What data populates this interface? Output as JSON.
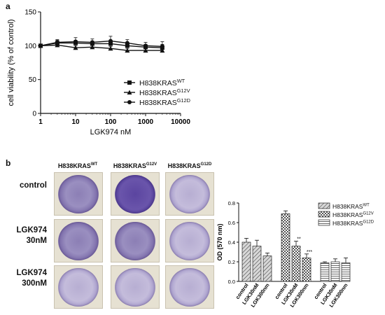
{
  "panel_a": {
    "label": "a"
  },
  "panel_b": {
    "label": "b",
    "columns": [
      {
        "base": "H838KRAS",
        "sup": "WT"
      },
      {
        "base": "H838KRAS",
        "sup": "G12V"
      },
      {
        "base": "H838KRAS",
        "sup": "G12D"
      }
    ],
    "rows": [
      {
        "line1": "control",
        "line2": ""
      },
      {
        "line1": "LGK974",
        "line2": "30nM"
      },
      {
        "line1": "LGK974",
        "line2": "300nM"
      }
    ]
  },
  "chart_data": [
    {
      "type": "line",
      "xlabel": "LGK974 nM",
      "ylabel": "cell viability (% of control)",
      "x_scale": "log",
      "xlim": [
        1,
        10000
      ],
      "ylim": [
        0,
        150
      ],
      "xticks": [
        "1",
        "10",
        "100",
        "1000",
        "10000"
      ],
      "yticks": [
        "0",
        "50",
        "100",
        "150"
      ],
      "x": [
        1,
        3,
        10,
        30,
        100,
        300,
        1000,
        3000
      ],
      "series": [
        {
          "name": "H838KRAS",
          "sup": "WT",
          "marker": "square",
          "values": [
            100,
            104,
            104,
            103,
            103,
            100,
            98,
            97
          ],
          "errors": [
            2,
            4,
            4,
            4,
            5,
            4,
            4,
            5
          ]
        },
        {
          "name": "H838KRAS",
          "sup": "G12V",
          "marker": "triangle",
          "values": [
            100,
            101,
            97,
            98,
            96,
            93,
            93,
            93
          ],
          "errors": [
            2,
            3,
            3,
            3,
            3,
            3,
            3,
            3
          ]
        },
        {
          "name": "H838KRAS",
          "sup": "G12D",
          "marker": "circle",
          "values": [
            100,
            105,
            106,
            105,
            107,
            104,
            100,
            99
          ],
          "errors": [
            2,
            4,
            6,
            5,
            7,
            5,
            5,
            7
          ]
        }
      ],
      "legend_position": "right"
    },
    {
      "type": "bar",
      "ylabel": "OD (570 nm)",
      "ylim": [
        0,
        0.8
      ],
      "yticks": [
        "0.0",
        "0.2",
        "0.4",
        "0.6",
        "0.8"
      ],
      "categories": [
        "control",
        "LGK30nM",
        "LGK300nm",
        "control",
        "LGK30nM",
        "LGK300nm",
        "control",
        "LGK30nM",
        "LGK300nm"
      ],
      "groups": [
        {
          "name": "H838KRAS",
          "sup": "WT",
          "pattern": "hatch",
          "values": [
            0.4,
            0.36,
            0.26
          ],
          "errors": [
            0.04,
            0.06,
            0.03
          ],
          "annotations": [
            "",
            "",
            ""
          ]
        },
        {
          "name": "H838KRAS",
          "sup": "G12V",
          "pattern": "check",
          "values": [
            0.69,
            0.36,
            0.24
          ],
          "errors": [
            0.03,
            0.05,
            0.04
          ],
          "annotations": [
            "",
            "**",
            "***"
          ]
        },
        {
          "name": "H838KRAS",
          "sup": "G12D",
          "pattern": "stripe",
          "values": [
            0.19,
            0.2,
            0.19
          ],
          "errors": [
            0.01,
            0.03,
            0.05
          ],
          "annotations": [
            "",
            "",
            ""
          ]
        }
      ],
      "legend_position": "top-right"
    }
  ]
}
